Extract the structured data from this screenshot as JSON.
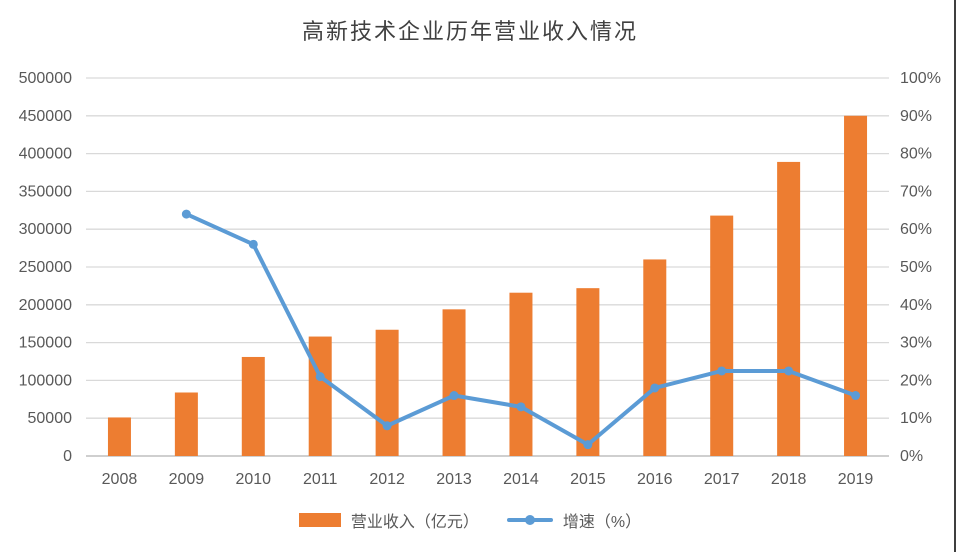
{
  "chart": {
    "title": "高新技术企业历年营业收入情况",
    "legend": {
      "bar": "营业收入（亿元）",
      "line": "增速（%）"
    }
  },
  "chart_data": {
    "type": "bar",
    "subtype": "combo-bar-line",
    "title": "高新技术企业历年营业收入情况",
    "categories": [
      "2008",
      "2009",
      "2010",
      "2011",
      "2012",
      "2013",
      "2014",
      "2015",
      "2016",
      "2017",
      "2018",
      "2019"
    ],
    "series": [
      {
        "name": "营业收入（亿元）",
        "type": "bar",
        "axis": "left",
        "color": "#ED7D31",
        "values": [
          51000,
          84000,
          131000,
          158000,
          167000,
          194000,
          216000,
          222000,
          260000,
          318000,
          389000,
          450000
        ]
      },
      {
        "name": "增速（%）",
        "type": "line",
        "axis": "right",
        "color": "#5B9BD5",
        "values": [
          null,
          64,
          56,
          21,
          8,
          16,
          13,
          3,
          18,
          22.5,
          22.5,
          16
        ]
      }
    ],
    "left_axis": {
      "label": "",
      "min": 0,
      "max": 500000,
      "step": 50000,
      "tick_labels": [
        "0",
        "50000",
        "100000",
        "150000",
        "200000",
        "250000",
        "300000",
        "350000",
        "400000",
        "450000",
        "500000"
      ]
    },
    "right_axis": {
      "label": "",
      "min": 0,
      "max": 100,
      "step": 10,
      "tick_labels": [
        "0%",
        "10%",
        "20%",
        "30%",
        "40%",
        "50%",
        "60%",
        "70%",
        "80%",
        "90%",
        "100%"
      ]
    },
    "grid": true,
    "legend_position": "bottom"
  },
  "colors": {
    "bar": "#ED7D31",
    "line": "#5B9BD5",
    "gridline": "#D9D9D9",
    "axis_line": "#BFBFBF",
    "tick_text": "#595959",
    "title_text": "#404040"
  }
}
